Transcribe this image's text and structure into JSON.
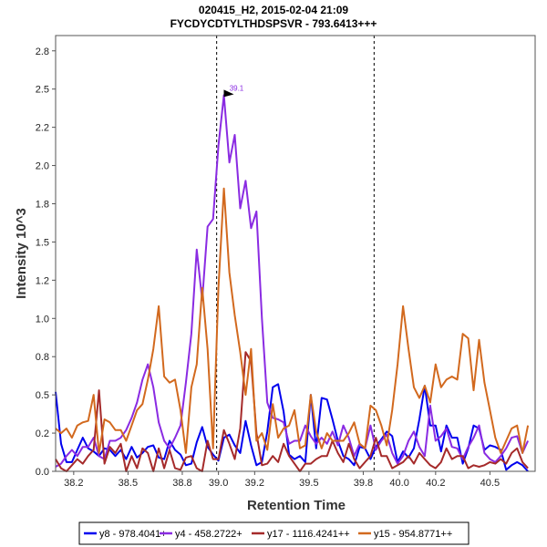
{
  "chart_data": {
    "type": "line",
    "title": "020415_H2, 2015-02-04 21:09",
    "subtitle": "FYCDYCDTYLTHDSPSVR - 793.6413+++",
    "xlabel": "Retention Time",
    "ylabel": "Intensity 10^3",
    "xlim": [
      38.1,
      40.75
    ],
    "ylim": [
      0,
      2.85
    ],
    "x_ticks": [
      "38.2",
      "38.5",
      "38.8",
      "39.0",
      "39.2",
      "39.5",
      "39.8",
      "40.0",
      "40.2",
      "40.5"
    ],
    "x_tick_values": [
      38.2,
      38.5,
      38.8,
      39.0,
      39.2,
      39.5,
      39.8,
      40.0,
      40.2,
      40.5
    ],
    "y_ticks": [
      "0.0",
      "0.2",
      "0.5",
      "0.8",
      "1.0",
      "1.2",
      "1.5",
      "1.8",
      "2.0",
      "2.2",
      "2.5",
      "2.8"
    ],
    "y_tick_values": [
      0.0,
      0.25,
      0.5,
      0.75,
      1.0,
      1.25,
      1.5,
      1.75,
      2.0,
      2.25,
      2.5,
      2.75
    ],
    "integration_bounds": [
      38.99,
      39.86
    ],
    "peak_annotation": {
      "label": "39.1",
      "x": 39.1,
      "y": 2.46,
      "color": "#8a2be2"
    },
    "legend_position": "bottom",
    "series": [
      {
        "name": "y8 - 978.4041+",
        "color": "#0000ee",
        "x": [
          38.1,
          38.13,
          38.16,
          38.19,
          38.22,
          38.25,
          38.28,
          38.31,
          38.34,
          38.37,
          38.4,
          38.43,
          38.46,
          38.49,
          38.52,
          38.55,
          38.58,
          38.61,
          38.64,
          38.67,
          38.7,
          38.73,
          38.76,
          38.79,
          38.82,
          38.85,
          38.88,
          38.91,
          38.94,
          38.97,
          39.0,
          39.03,
          39.06,
          39.09,
          39.12,
          39.15,
          39.18,
          39.21,
          39.24,
          39.27,
          39.3,
          39.33,
          39.36,
          39.39,
          39.42,
          39.45,
          39.48,
          39.51,
          39.54,
          39.57,
          39.6,
          39.63,
          39.66,
          39.69,
          39.72,
          39.75,
          39.78,
          39.81,
          39.84,
          39.87,
          39.9,
          39.93,
          39.96,
          39.99,
          40.02,
          40.05,
          40.08,
          40.11,
          40.14,
          40.17,
          40.2,
          40.23,
          40.26,
          40.29,
          40.32,
          40.35,
          40.38,
          40.41,
          40.44,
          40.47,
          40.5,
          40.53,
          40.56,
          40.59,
          40.62,
          40.65,
          40.68,
          40.71
        ],
        "y": [
          0.52,
          0.18,
          0.06,
          0.06,
          0.14,
          0.22,
          0.15,
          0.13,
          0.1,
          0.15,
          0.14,
          0.1,
          0.14,
          0.08,
          0.16,
          0.09,
          0.12,
          0.16,
          0.17,
          0.09,
          0.08,
          0.2,
          0.14,
          0.11,
          0.04,
          0.05,
          0.19,
          0.29,
          0.16,
          0.11,
          0.07,
          0.22,
          0.24,
          0.17,
          0.12,
          0.33,
          0.17,
          0.04,
          0.06,
          0.26,
          0.55,
          0.57,
          0.39,
          0.11,
          0.08,
          0.1,
          0.06,
          0.5,
          0.15,
          0.48,
          0.47,
          0.34,
          0.2,
          0.1,
          0.08,
          0.04,
          0.16,
          0.15,
          0.08,
          0.16,
          0.21,
          0.26,
          0.23,
          0.06,
          0.13,
          0.09,
          0.15,
          0.34,
          0.56,
          0.3,
          0.3,
          0.13,
          0.3,
          0.22,
          0.22,
          0.05,
          0.15,
          0.3,
          0.28,
          0.14,
          0.17,
          0.16,
          0.14,
          0.01,
          0.04,
          0.06,
          0.04,
          0.0
        ]
      },
      {
        "name": "y4 - 458.2722+",
        "color": "#8a2be2",
        "x": [
          38.1,
          38.13,
          38.16,
          38.19,
          38.22,
          38.25,
          38.28,
          38.31,
          38.34,
          38.37,
          38.4,
          38.43,
          38.46,
          38.49,
          38.52,
          38.55,
          38.58,
          38.61,
          38.64,
          38.67,
          38.7,
          38.73,
          38.76,
          38.79,
          38.82,
          38.85,
          38.88,
          38.91,
          38.94,
          38.97,
          39.0,
          39.03,
          39.06,
          39.09,
          39.12,
          39.15,
          39.18,
          39.21,
          39.24,
          39.27,
          39.3,
          39.33,
          39.36,
          39.39,
          39.42,
          39.45,
          39.48,
          39.51,
          39.54,
          39.57,
          39.6,
          39.63,
          39.66,
          39.69,
          39.72,
          39.75,
          39.78,
          39.81,
          39.84,
          39.87,
          39.9,
          39.93,
          39.96,
          39.99,
          40.02,
          40.05,
          40.08,
          40.11,
          40.14,
          40.17,
          40.2,
          40.23,
          40.26,
          40.29,
          40.32,
          40.35,
          40.38,
          40.41,
          40.44,
          40.47,
          40.5,
          40.53,
          40.56,
          40.59,
          40.62,
          40.65,
          40.68,
          40.71
        ],
        "y": [
          0.03,
          0.05,
          0.1,
          0.14,
          0.1,
          0.16,
          0.16,
          0.22,
          0.1,
          0.08,
          0.2,
          0.2,
          0.22,
          0.27,
          0.35,
          0.45,
          0.6,
          0.7,
          0.55,
          0.32,
          0.2,
          0.15,
          0.22,
          0.3,
          0.58,
          0.9,
          1.45,
          1.12,
          1.6,
          1.65,
          2.13,
          2.46,
          2.02,
          2.2,
          1.72,
          1.9,
          1.59,
          1.7,
          1.0,
          0.45,
          0.35,
          0.34,
          0.32,
          0.18,
          0.2,
          0.2,
          0.3,
          0.23,
          0.18,
          0.22,
          0.18,
          0.26,
          0.17,
          0.3,
          0.22,
          0.1,
          0.18,
          0.15,
          0.3,
          0.14,
          0.2,
          0.24,
          0.12,
          0.05,
          0.1,
          0.2,
          0.26,
          0.16,
          0.1,
          0.43,
          0.2,
          0.23,
          0.28,
          0.16,
          0.15,
          0.08,
          0.16,
          0.22,
          0.3,
          0.12,
          0.08,
          0.06,
          0.1,
          0.15,
          0.22,
          0.23,
          0.12,
          0.2
        ]
      },
      {
        "name": "y17 - 1116.4241++",
        "color": "#a52a2a",
        "x": [
          38.1,
          38.13,
          38.16,
          38.19,
          38.22,
          38.25,
          38.28,
          38.31,
          38.34,
          38.37,
          38.4,
          38.43,
          38.46,
          38.49,
          38.52,
          38.55,
          38.58,
          38.61,
          38.64,
          38.67,
          38.7,
          38.73,
          38.76,
          38.79,
          38.82,
          38.85,
          38.88,
          38.91,
          38.94,
          38.97,
          39.0,
          39.03,
          39.06,
          39.09,
          39.12,
          39.15,
          39.18,
          39.21,
          39.24,
          39.27,
          39.3,
          39.33,
          39.36,
          39.39,
          39.42,
          39.45,
          39.48,
          39.51,
          39.54,
          39.57,
          39.6,
          39.63,
          39.66,
          39.69,
          39.72,
          39.75,
          39.78,
          39.81,
          39.84,
          39.87,
          39.9,
          39.93,
          39.96,
          39.99,
          40.02,
          40.05,
          40.08,
          40.11,
          40.14,
          40.17,
          40.2,
          40.23,
          40.26,
          40.29,
          40.32,
          40.35,
          40.38,
          40.41,
          40.44,
          40.47,
          40.5,
          40.53,
          40.56,
          40.59,
          40.62,
          40.65,
          40.68,
          40.71
        ],
        "y": [
          0.08,
          0.02,
          0.0,
          0.04,
          0.08,
          0.05,
          0.1,
          0.14,
          0.53,
          0.05,
          0.16,
          0.12,
          0.18,
          0.0,
          0.1,
          0.02,
          0.15,
          0.12,
          0.0,
          0.15,
          0.02,
          0.14,
          0.02,
          0.01,
          0.09,
          0.1,
          0.02,
          0.0,
          0.2,
          0.08,
          0.08,
          0.27,
          0.18,
          0.08,
          0.28,
          0.78,
          0.72,
          0.25,
          0.04,
          0.05,
          0.1,
          0.06,
          0.18,
          0.1,
          0.05,
          0.0,
          0.05,
          0.05,
          0.08,
          0.1,
          0.1,
          0.2,
          0.12,
          0.06,
          0.18,
          0.08,
          0.02,
          0.06,
          0.1,
          0.22,
          0.1,
          0.1,
          0.02,
          0.04,
          0.06,
          0.1,
          0.05,
          0.12,
          0.08,
          0.04,
          0.02,
          0.06,
          0.15,
          0.08,
          0.1,
          0.1,
          0.02,
          0.04,
          0.03,
          0.04,
          0.06,
          0.05,
          0.08,
          0.05,
          0.12,
          0.15,
          0.06,
          0.02
        ]
      },
      {
        "name": "y15 - 954.8771++",
        "color": "#d2691e",
        "x": [
          38.1,
          38.13,
          38.16,
          38.19,
          38.22,
          38.25,
          38.28,
          38.31,
          38.34,
          38.37,
          38.4,
          38.43,
          38.46,
          38.49,
          38.52,
          38.55,
          38.58,
          38.61,
          38.64,
          38.67,
          38.7,
          38.73,
          38.76,
          38.79,
          38.82,
          38.85,
          38.88,
          38.91,
          38.94,
          38.97,
          39.0,
          39.03,
          39.06,
          39.09,
          39.12,
          39.15,
          39.18,
          39.21,
          39.24,
          39.27,
          39.3,
          39.33,
          39.36,
          39.39,
          39.42,
          39.45,
          39.48,
          39.51,
          39.54,
          39.57,
          39.6,
          39.63,
          39.66,
          39.69,
          39.72,
          39.75,
          39.78,
          39.81,
          39.84,
          39.87,
          39.9,
          39.93,
          39.96,
          39.99,
          40.02,
          40.05,
          40.08,
          40.11,
          40.14,
          40.17,
          40.2,
          40.23,
          40.26,
          40.29,
          40.32,
          40.35,
          40.38,
          40.41,
          40.44,
          40.47,
          40.5,
          40.53,
          40.56,
          40.59,
          40.62,
          40.65,
          40.68,
          40.71
        ],
        "y": [
          0.28,
          0.25,
          0.28,
          0.22,
          0.3,
          0.32,
          0.33,
          0.5,
          0.12,
          0.34,
          0.32,
          0.27,
          0.27,
          0.2,
          0.3,
          0.4,
          0.44,
          0.6,
          0.8,
          1.08,
          0.62,
          0.58,
          0.6,
          0.4,
          0.12,
          0.55,
          0.7,
          1.2,
          0.8,
          0.15,
          1.2,
          1.85,
          1.3,
          1.02,
          0.78,
          0.5,
          0.8,
          0.2,
          0.25,
          0.14,
          0.44,
          0.22,
          0.28,
          0.3,
          0.4,
          0.15,
          0.17,
          0.5,
          0.26,
          0.15,
          0.25,
          0.2,
          0.2,
          0.2,
          0.25,
          0.32,
          0.18,
          0.15,
          0.43,
          0.4,
          0.3,
          0.17,
          0.4,
          0.7,
          1.08,
          0.8,
          0.55,
          0.48,
          0.56,
          0.45,
          0.7,
          0.55,
          0.6,
          0.62,
          0.6,
          0.9,
          0.87,
          0.53,
          0.86,
          0.58,
          0.4,
          0.22,
          0.12,
          0.2,
          0.28,
          0.3,
          0.12,
          0.3
        ]
      }
    ]
  }
}
